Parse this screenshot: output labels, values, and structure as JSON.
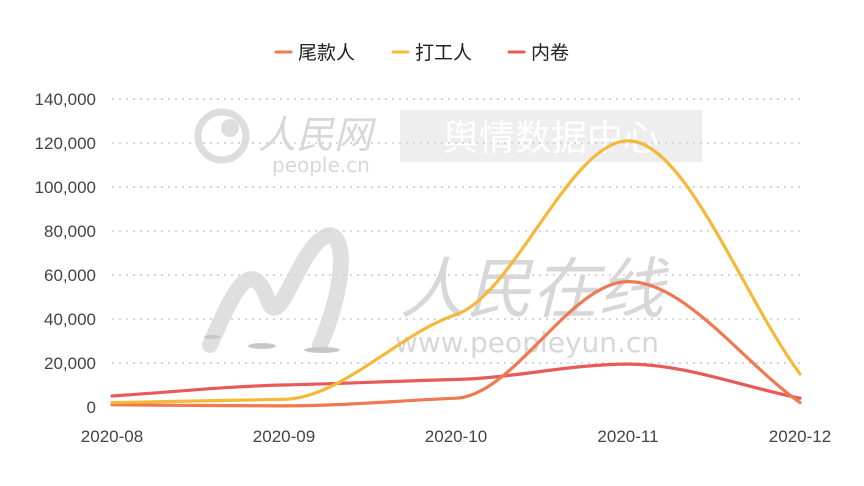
{
  "watermark": {
    "logo_text": "人民网",
    "logo_url": "people.cn",
    "box_text": "舆情数据中心",
    "big_text": "人民在线",
    "big_url": "www.peopleyun.cn"
  },
  "chart_data": {
    "type": "line",
    "x": [
      "2020-08",
      "2020-09",
      "2020-10",
      "2020-11",
      "2020-12"
    ],
    "ylim": [
      0,
      140000
    ],
    "yticks": [
      0,
      20000,
      40000,
      60000,
      80000,
      100000,
      120000,
      140000
    ],
    "ytick_labels": [
      "0",
      "20,000",
      "40,000",
      "60,000",
      "80,000",
      "100,000",
      "120,000",
      "140,000"
    ],
    "grid": true,
    "legend_position": "top-center",
    "series": [
      {
        "name": "尾款人",
        "color": "#ee7a52",
        "values": [
          1000,
          500,
          4000,
          57000,
          2000
        ]
      },
      {
        "name": "打工人",
        "color": "#f5b93a",
        "values": [
          2000,
          3500,
          42000,
          121000,
          15000
        ]
      },
      {
        "name": "内卷",
        "color": "#e85a5a",
        "values": [
          5000,
          10000,
          12500,
          19500,
          4000
        ]
      }
    ]
  }
}
